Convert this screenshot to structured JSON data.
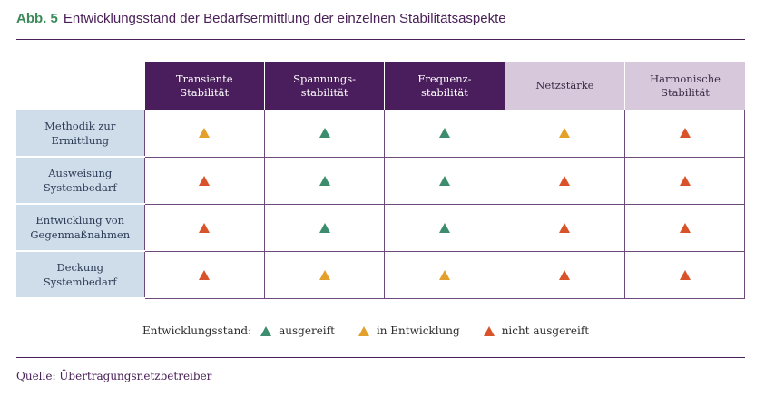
{
  "header": {
    "label": "Abb. 5",
    "title": "Entwicklungsstand der Bedarfsermittlung der einzelnen Stabilitätsaspekte"
  },
  "colors": {
    "green": "#3c8d6e",
    "orange": "#e3a02a",
    "red": "#d9532a",
    "purple": "#4a1d5c",
    "lilac": "#d8c8dc",
    "blue_grey": "#cfdcea"
  },
  "columns": [
    {
      "line1": "Transiente",
      "line2": "Stabilität"
    },
    {
      "line1": "Spannungs-",
      "line2": "stabilität"
    },
    {
      "line1": "Frequenz-",
      "line2": "stabilität"
    },
    {
      "line1": "Netzstärke",
      "line2": ""
    },
    {
      "line1": "Harmonische",
      "line2": "Stabilität"
    }
  ],
  "rows": [
    {
      "line1": "Methodik zur",
      "line2": "Ermittlung",
      "status": [
        "in Entwicklung",
        "ausgereift",
        "ausgereift",
        "in Entwicklung",
        "nicht ausgereift"
      ]
    },
    {
      "line1": "Ausweisung",
      "line2": "Systembedarf",
      "status": [
        "nicht ausgereift",
        "ausgereift",
        "ausgereift",
        "nicht ausgereift",
        "nicht ausgereift"
      ]
    },
    {
      "line1": "Entwicklung von",
      "line2": "Gegenmaßnahmen",
      "status": [
        "nicht ausgereift",
        "ausgereift",
        "ausgereift",
        "nicht ausgereift",
        "nicht ausgereift"
      ]
    },
    {
      "line1": "Deckung",
      "line2": "Systembedarf",
      "status": [
        "nicht ausgereift",
        "in Entwicklung",
        "in Entwicklung",
        "nicht ausgereift",
        "nicht ausgereift"
      ]
    }
  ],
  "legend": {
    "title": "Entwicklungsstand:",
    "items": [
      "ausgereift",
      "in Entwicklung",
      "nicht ausgereift"
    ]
  },
  "source": "Quelle: Übertragungsnetzbetreiber"
}
